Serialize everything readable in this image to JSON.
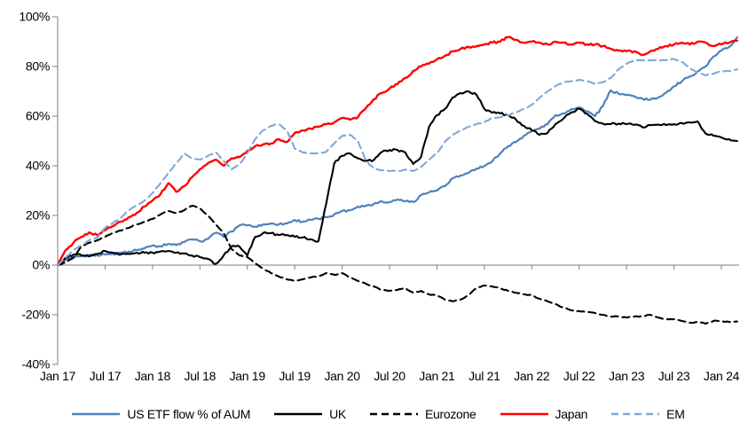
{
  "chart_data": {
    "type": "line",
    "title": "",
    "axis_color": "#7f7f7f",
    "text_color": "#000000",
    "legend_position": "bottom",
    "grid": "off",
    "x_axis": {
      "start": "Jan 2017",
      "end": "Mar 2024",
      "frequency": "monthly",
      "tick_labels": [
        "Jan 17",
        "Jul 17",
        "Jan 18",
        "Jul 18",
        "Jan 19",
        "Jul 19",
        "Jan 20",
        "Jul 20",
        "Jan 21",
        "Jul 21",
        "Jan 22",
        "Jul 22",
        "Jan 23",
        "Jul 23",
        "Jan 24"
      ]
    },
    "y_axis": {
      "unit": "%",
      "ylim": [
        -40,
        100
      ],
      "tick_values": [
        100,
        80,
        60,
        40,
        20,
        0,
        -20,
        -40
      ],
      "tick_labels": [
        "100%",
        "80%",
        "60%",
        "40%",
        "20%",
        "0%",
        "-20%",
        "-40%"
      ]
    },
    "series": [
      {
        "name": "US ETF flow % of AUM",
        "slug": "us-etf-flow",
        "color": "#4e81bd",
        "line_style": "solid",
        "stroke_width": 2.2,
        "values": [
          0,
          2,
          3,
          3.5,
          4,
          4,
          4.3,
          4.5,
          5,
          5.5,
          6,
          6.8,
          7.9,
          7.5,
          8.6,
          8,
          9.3,
          10.4,
          9.6,
          10.5,
          13,
          11.4,
          13.5,
          16,
          16,
          15.5,
          16.4,
          16.8,
          16.4,
          16.8,
          18.2,
          17.5,
          18.2,
          18.6,
          19.3,
          20.4,
          21.8,
          22.1,
          23.6,
          23.9,
          24.6,
          25.7,
          25.4,
          26.4,
          25.7,
          25.4,
          28.2,
          29.3,
          30,
          31.8,
          35,
          36.1,
          37.1,
          38.9,
          40,
          41.8,
          45,
          47.9,
          49.6,
          52.1,
          54,
          55,
          56.8,
          60.4,
          61.1,
          62.9,
          63.5,
          62,
          60,
          64,
          70.4,
          69,
          68.5,
          68,
          67,
          66.6,
          67.5,
          69.5,
          72,
          74,
          76,
          78,
          80,
          84,
          86.4,
          88,
          91.8
        ]
      },
      {
        "name": "UK",
        "slug": "uk",
        "color": "#000000",
        "line_style": "solid",
        "stroke_width": 2.1,
        "values": [
          0,
          3,
          4.3,
          4,
          3.5,
          4.5,
          5.7,
          5,
          4.3,
          4.5,
          5,
          5,
          5,
          5.5,
          5.7,
          5,
          4.6,
          3.9,
          3.2,
          2.5,
          0.5,
          3.9,
          7.5,
          7.5,
          3.9,
          11.4,
          12.9,
          12.9,
          12.1,
          12.1,
          11.4,
          11.1,
          10.4,
          9.6,
          25,
          41,
          44,
          45,
          43,
          42,
          42.3,
          45.5,
          46.4,
          46.4,
          45.4,
          40.7,
          43.6,
          55.7,
          60.4,
          62.9,
          67.5,
          69.3,
          70,
          68.6,
          62.9,
          61.4,
          61.1,
          60.4,
          58.6,
          56.1,
          54.3,
          52.5,
          53.2,
          56.8,
          59,
          61.5,
          63,
          61,
          58,
          57,
          56.8,
          57,
          56.8,
          56.5,
          55.5,
          56.4,
          56.6,
          56.4,
          56.8,
          57.2,
          57.5,
          57.9,
          53,
          52.1,
          51.4,
          50.7,
          50
        ]
      },
      {
        "name": "Eurozone",
        "slug": "eurozone",
        "color": "#000000",
        "line_style": "dashed",
        "stroke_width": 2.1,
        "values": [
          0,
          1,
          3,
          7.5,
          9,
          10,
          11.4,
          13,
          13.9,
          15,
          16.4,
          17.5,
          18.6,
          20.4,
          21.8,
          21,
          22.1,
          23.9,
          22.9,
          20,
          16.4,
          12.9,
          6.5,
          3.9,
          3.2,
          0.7,
          -1.4,
          -3.2,
          -4.6,
          -5.7,
          -6.4,
          -5.7,
          -5,
          -4.6,
          -3.2,
          -3.9,
          -3.2,
          -5,
          -6.4,
          -7.5,
          -8.6,
          -10,
          -10.4,
          -10,
          -9.3,
          -11.1,
          -10.4,
          -11.8,
          -12.1,
          -13.9,
          -14.6,
          -13.9,
          -12.1,
          -9.3,
          -8.2,
          -8.6,
          -9.3,
          -10.4,
          -11.1,
          -11.8,
          -12.1,
          -13.6,
          -14.6,
          -15.7,
          -17.1,
          -18.2,
          -18.5,
          -18.9,
          -19.3,
          -20,
          -20.7,
          -20.7,
          -21.1,
          -20.7,
          -20.7,
          -20,
          -21.1,
          -21.8,
          -21.8,
          -22.5,
          -23.2,
          -22.9,
          -23.6,
          -22.5,
          -22.5,
          -22.9,
          -22.7
        ]
      },
      {
        "name": "Japan",
        "slug": "japan",
        "color": "#ff0000",
        "line_style": "solid",
        "stroke_width": 2.4,
        "values": [
          0,
          6,
          9,
          11.4,
          13.2,
          12,
          14,
          15.7,
          17.5,
          19.3,
          21,
          23.6,
          26,
          28.5,
          33,
          29.5,
          31.8,
          35.4,
          38.6,
          41,
          42.5,
          40,
          43,
          43.5,
          46,
          47.9,
          48.6,
          49,
          50.7,
          49.6,
          53.2,
          54.3,
          55,
          55.7,
          56.8,
          57.5,
          59.3,
          58.6,
          59.6,
          63.2,
          66.8,
          69.3,
          71.1,
          72.9,
          75.4,
          78.2,
          80,
          81.1,
          82.9,
          84.3,
          86.1,
          87.1,
          87.9,
          88.2,
          88.9,
          89.6,
          90,
          91.8,
          90.7,
          89.6,
          90,
          89.6,
          88.9,
          90,
          89.6,
          88.9,
          89.6,
          88.9,
          88.9,
          88.2,
          87.1,
          86.4,
          86.1,
          86.1,
          84.6,
          86.1,
          87.1,
          88.2,
          88.9,
          89.6,
          88.9,
          90,
          89.6,
          88.2,
          88.9,
          89.6,
          90.4
        ]
      },
      {
        "name": "EM",
        "slug": "em",
        "color": "#7fa8d9",
        "line_style": "dashed",
        "stroke_width": 2.1,
        "values": [
          0,
          3,
          6,
          8,
          10,
          11,
          15,
          17,
          19,
          22,
          24,
          26,
          29,
          33,
          37,
          41,
          45,
          43,
          42.5,
          44,
          45.5,
          42,
          38.5,
          40.5,
          45,
          50.7,
          54.3,
          56.1,
          56.8,
          54.3,
          47,
          45.4,
          45,
          45,
          45.7,
          49,
          52,
          52.5,
          50,
          42,
          39,
          38.2,
          37.9,
          37.9,
          38.5,
          37.9,
          39.6,
          42.5,
          45,
          49.6,
          52.5,
          54.3,
          55.7,
          56.8,
          57.5,
          59.3,
          59.6,
          60.4,
          61.4,
          62.9,
          64.6,
          67.5,
          70,
          72.1,
          73.6,
          74.1,
          74.6,
          74,
          73,
          73.6,
          75.4,
          78.9,
          81.1,
          82.5,
          82.5,
          82.5,
          82.5,
          82.5,
          83,
          81.8,
          79.4,
          77.5,
          76.4,
          77.1,
          78.2,
          78.2,
          78.9
        ]
      }
    ]
  }
}
